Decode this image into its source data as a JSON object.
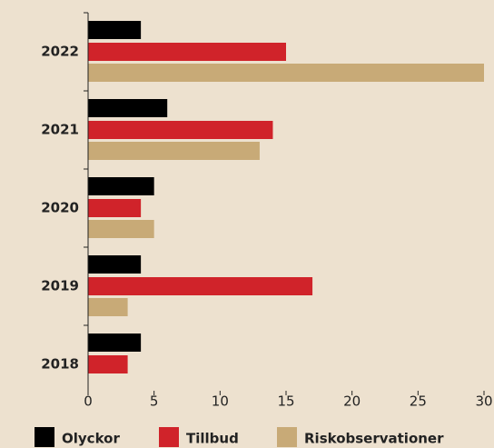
{
  "chart_data": {
    "type": "barh",
    "categories": [
      "2022",
      "2021",
      "2020",
      "2019",
      "2018"
    ],
    "series": [
      {
        "name": "Olyckor",
        "color": "#000000",
        "values": [
          4,
          6,
          5,
          4,
          4
        ]
      },
      {
        "name": "Tillbud",
        "color": "#d0232a",
        "values": [
          15,
          14,
          4,
          17,
          3
        ]
      },
      {
        "name": "Riskobservationer",
        "color": "#c8aa77",
        "values": [
          30,
          13,
          5,
          3,
          0
        ]
      }
    ],
    "xlim": [
      0,
      30
    ],
    "xticks": [
      0,
      5,
      10,
      15,
      20,
      25,
      30
    ],
    "grid": false
  }
}
